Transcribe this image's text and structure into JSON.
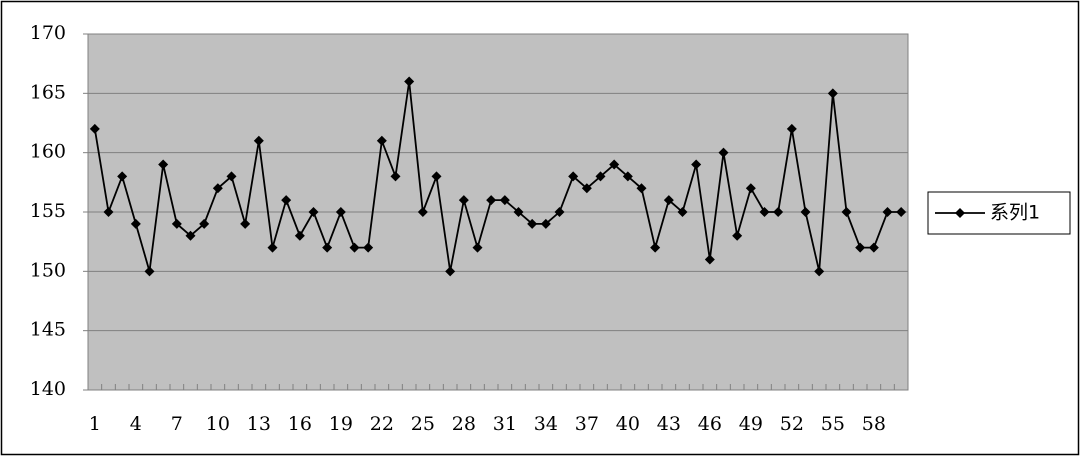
{
  "chart_data": {
    "type": "line",
    "categories": [
      "1",
      null,
      null,
      "4",
      null,
      null,
      "7",
      null,
      null,
      "10",
      null,
      null,
      "13",
      null,
      null,
      "16",
      null,
      null,
      "19",
      null,
      null,
      "22",
      null,
      null,
      "25",
      null,
      null,
      "28",
      null,
      null,
      "31",
      null,
      null,
      "34",
      null,
      null,
      "37",
      null,
      null,
      "40",
      null,
      null,
      "43",
      null,
      null,
      "46",
      null,
      null,
      "49",
      null,
      null,
      "52",
      null,
      null,
      "55",
      null,
      null,
      "58",
      null,
      null
    ],
    "series": [
      {
        "name": "系列1",
        "color": "#000000",
        "values": [
          162,
          155,
          158,
          154,
          150,
          159,
          154,
          153,
          154,
          157,
          158,
          154,
          161,
          152,
          156,
          153,
          155,
          152,
          155,
          152,
          152,
          161,
          158,
          166,
          155,
          158,
          150,
          156,
          152,
          156,
          156,
          155,
          154,
          154,
          155,
          158,
          157,
          158,
          159,
          158,
          157,
          152,
          156,
          155,
          159,
          151,
          160,
          153,
          157,
          155,
          155,
          162,
          155,
          150,
          165,
          155,
          152,
          152,
          155,
          155
        ]
      }
    ],
    "ylim": [
      140,
      170
    ],
    "yticks": [
      140,
      145,
      150,
      155,
      160,
      165,
      170
    ],
    "grid": true,
    "legend": "right",
    "plot_background": "#c0c0c0"
  }
}
